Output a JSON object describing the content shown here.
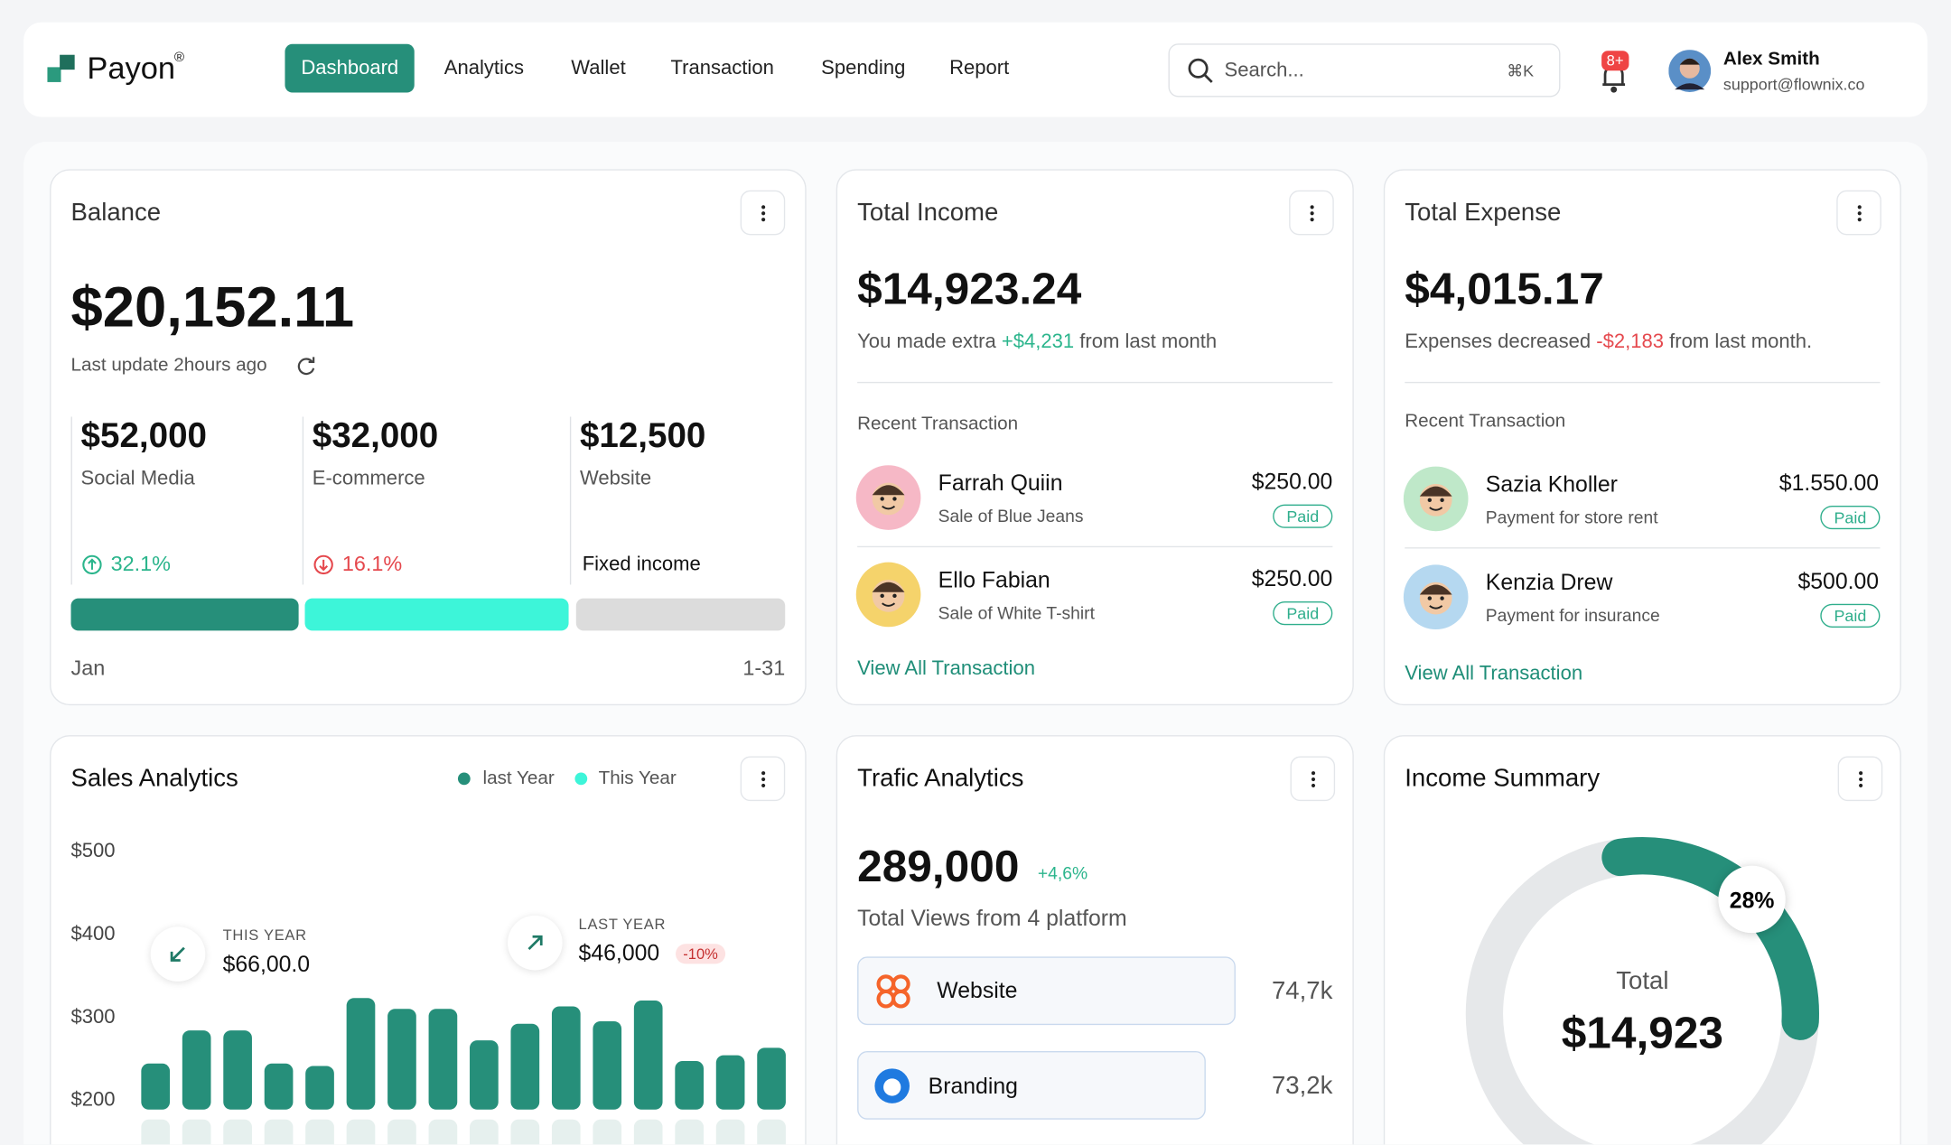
{
  "header": {
    "brand": "Payon",
    "brand_mark": "®",
    "nav": [
      "Dashboard",
      "Analytics",
      "Wallet",
      "Transaction",
      "Spending",
      "Report"
    ],
    "active_nav": 0,
    "search": {
      "placeholder": "Search...",
      "shortcut": "⌘K"
    },
    "notifications": "8+",
    "user": {
      "name": "Alex Smith",
      "email": "support@flownix.co"
    }
  },
  "balance": {
    "title": "Balance",
    "amount": "$20,152.11",
    "updated": "Last update 2hours ago",
    "sources": [
      {
        "amount": "$52,000",
        "label": "Social Media",
        "change": "32.1%",
        "trend": "up"
      },
      {
        "amount": "$32,000",
        "label": "E-commerce",
        "change": "16.1%",
        "trend": "down"
      },
      {
        "amount": "$12,500",
        "label": "Website",
        "note": "Fixed income"
      }
    ],
    "period_start": "Jan",
    "period_end": "1-31"
  },
  "income": {
    "title": "Total Income",
    "amount": "$14,923.24",
    "note_pre": "You made extra",
    "note_delta": "+$4,231",
    "note_post": "from last month",
    "recent_title": "Recent Transaction",
    "transactions": [
      {
        "name": "Farrah Quiin",
        "desc": "Sale of Blue Jeans",
        "amount": "$250.00",
        "status": "Paid"
      },
      {
        "name": "Ello Fabian",
        "desc": "Sale of White T-shirt",
        "amount": "$250.00",
        "status": "Paid"
      }
    ],
    "link": "View All Transaction"
  },
  "expense": {
    "title": "Total Expense",
    "amount": "$4,015.17",
    "note_pre": "Expenses decreased",
    "note_delta": "-$2,183",
    "note_post": "from last month.",
    "recent_title": "Recent Transaction",
    "transactions": [
      {
        "name": "Sazia Kholler",
        "desc": "Payment for store rent",
        "amount": "$1.550.00",
        "status": "Paid"
      },
      {
        "name": "Kenzia Drew",
        "desc": "Payment for insurance",
        "amount": "$500.00",
        "status": "Paid"
      }
    ],
    "link": "View All Transaction"
  },
  "sales_analytics": {
    "chart_data": {
      "type": "bar",
      "title": "Sales Analytics",
      "legend": [
        "last Year",
        "This Year"
      ],
      "ylim": [
        200,
        500
      ],
      "yticks": [
        {
          "value": 500,
          "label": "$500"
        },
        {
          "value": 400,
          "label": "$400"
        },
        {
          "value": 300,
          "label": "$300"
        },
        {
          "value": 200,
          "label": "$200"
        }
      ],
      "values": [
        242,
        282,
        282,
        242,
        239,
        321,
        308,
        308,
        270,
        290,
        311,
        293,
        318,
        245,
        252,
        261
      ],
      "color": "#268f7a"
    },
    "stats": [
      {
        "label": "THIS YEAR",
        "value": "$66,00.0"
      },
      {
        "label": "LAST YEAR",
        "value": "$46,000",
        "badge": "-10%"
      }
    ]
  },
  "traffic": {
    "title": "Trafic Analytics",
    "views": "289,000",
    "delta": "+4,6%",
    "subtitle": "Total Views from 4 platform",
    "platforms": [
      {
        "name": "Website",
        "views": "74,7k"
      },
      {
        "name": "Branding",
        "views": "73,2k"
      }
    ]
  },
  "income_summary": {
    "title": "Income Summary",
    "percent": 28,
    "percent_label": "28%",
    "total_label": "Total",
    "total": "$14,923"
  }
}
